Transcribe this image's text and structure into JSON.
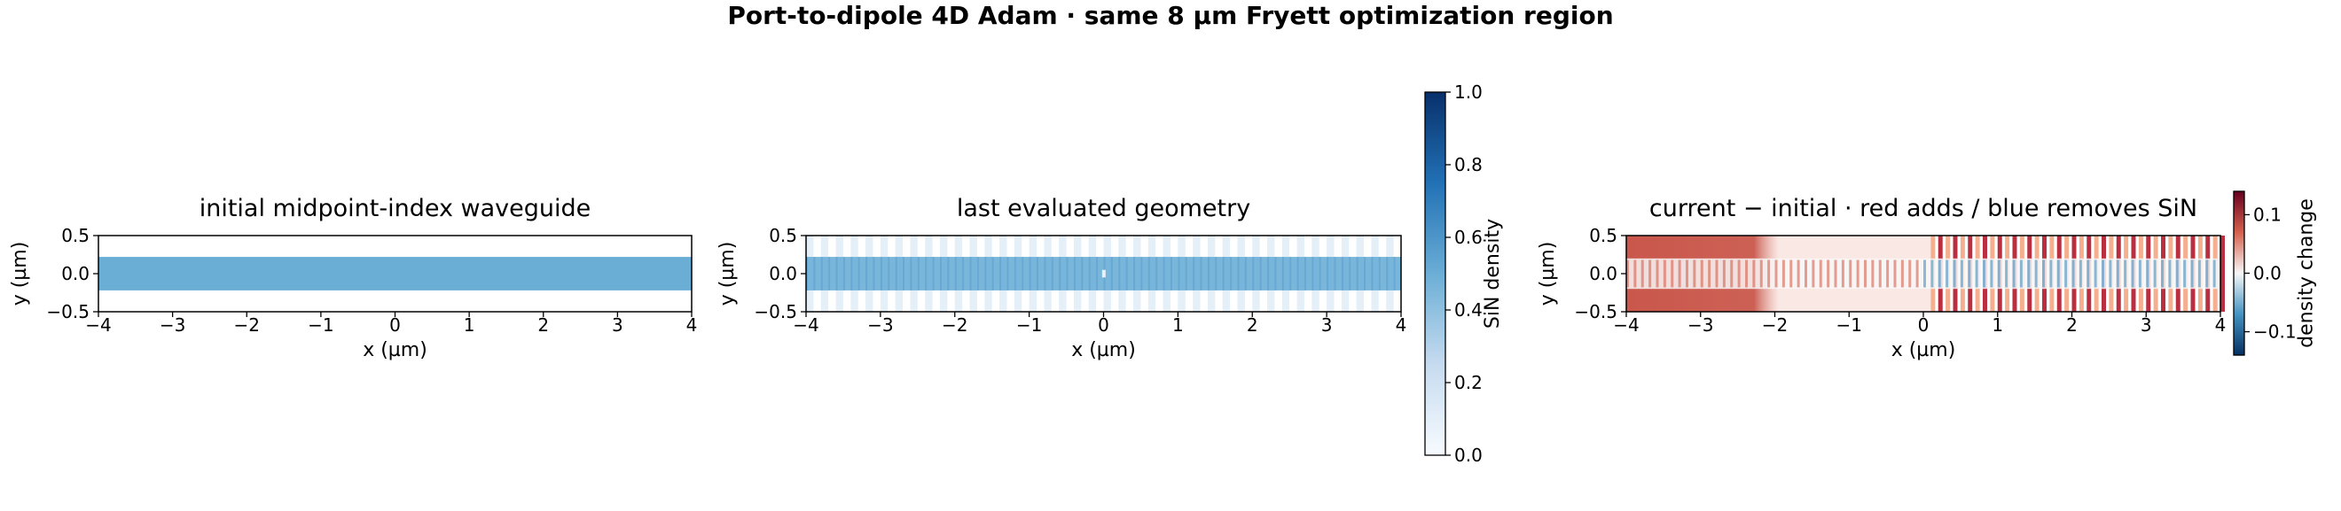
{
  "title": "Port-to-dipole 4D Adam · same 8 µm Fryett optimization region",
  "chart_data": [
    {
      "type": "heatmap",
      "title": "initial midpoint-index waveguide",
      "x_label": "x (µm)",
      "y_label": "y (µm)",
      "xlim": [
        -4,
        4
      ],
      "ylim": [
        -0.5,
        0.5
      ],
      "xticks": [
        {
          "value": -4,
          "label": "−4"
        },
        {
          "value": -3,
          "label": "−3"
        },
        {
          "value": -2,
          "label": "−2"
        },
        {
          "value": -1,
          "label": "−1"
        },
        0,
        1,
        2,
        3,
        4
      ],
      "yticks": [
        {
          "value": -0.5,
          "label": "−0.5"
        },
        {
          "value": 0,
          "label": "0.0"
        },
        0.5
      ],
      "cmap": "Blues"
    },
    {
      "type": "heatmap",
      "title": "last evaluated geometry",
      "x_label": "x (µm)",
      "y_label": "y (µm)",
      "xlim": [
        -4,
        4
      ],
      "ylim": [
        -0.5,
        0.5
      ],
      "xticks": [
        {
          "value": -4,
          "label": "−4"
        },
        {
          "value": -3,
          "label": "−3"
        },
        {
          "value": -2,
          "label": "−2"
        },
        {
          "value": -1,
          "label": "−1"
        },
        0,
        1,
        2,
        3,
        4
      ],
      "yticks": [
        {
          "value": -0.5,
          "label": "−0.5"
        },
        {
          "value": 0,
          "label": "0.0"
        },
        0.5
      ],
      "cmap": "Blues",
      "colorbar": {
        "label": "SiN density",
        "lim": [
          0,
          1
        ],
        "ticks": [
          {
            "value": 0,
            "label": "0.0"
          },
          0.2,
          0.4,
          0.6,
          0.8,
          {
            "value": 1,
            "label": "1.0"
          }
        ]
      }
    },
    {
      "type": "heatmap",
      "title": "current − initial · red adds / blue removes SiN",
      "x_label": "x (µm)",
      "y_label": "y (µm)",
      "xlim": [
        -4,
        4
      ],
      "ylim": [
        -0.5,
        0.5
      ],
      "xticks": [
        {
          "value": -4,
          "label": "−4"
        },
        {
          "value": -3,
          "label": "−3"
        },
        {
          "value": -2,
          "label": "−2"
        },
        {
          "value": -1,
          "label": "−1"
        },
        0,
        1,
        2,
        3,
        4
      ],
      "yticks": [
        {
          "value": -0.5,
          "label": "−0.5"
        },
        {
          "value": 0,
          "label": "0.0"
        },
        0.5
      ],
      "cmap": "RdBu_r",
      "colorbar": {
        "label": "density change",
        "lim": [
          -0.14,
          0.14
        ],
        "ticks": [
          {
            "value": -0.1,
            "label": "−0.1"
          },
          {
            "value": 0,
            "label": "0.0"
          },
          0.1
        ]
      }
    }
  ]
}
